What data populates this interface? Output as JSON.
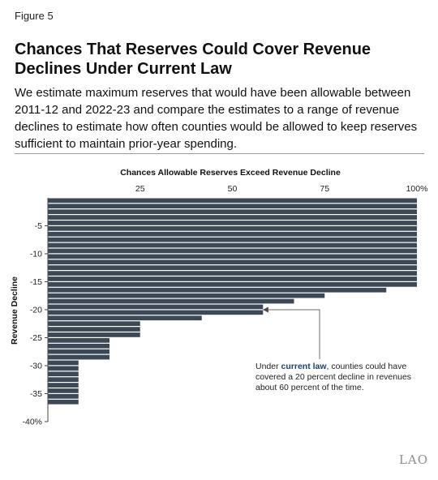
{
  "figure_label": "Figure 5",
  "title": "Chances That Reserves Could Cover Revenue Declines Under Current Law",
  "subtitle": "We estimate maximum reserves that would have been allowable between 2011-12 and 2022-23 and compare the estimates to a range of revenue declines to estimate how often counties would be allowed to keep reserves sufficient to maintain prior-year spending.",
  "logo_text": "LAO",
  "chart_data": {
    "type": "bar",
    "orientation": "horizontal",
    "title": "Chances Allowable Reserves Exceed Revenue Decline",
    "xlabel": "",
    "ylabel": "Revenue Decline",
    "xlim": [
      0,
      100
    ],
    "xticks": [
      25,
      50,
      75,
      100
    ],
    "xtick_labels": [
      "25",
      "50",
      "75",
      "100%"
    ],
    "ylim": [
      0,
      -40
    ],
    "yticks": [
      -5,
      -10,
      -15,
      -20,
      -25,
      -30,
      -35,
      -40
    ],
    "ytick_labels": [
      "-5",
      "-10",
      "-15",
      "-20",
      "-25",
      "-30",
      "-35",
      "-40%"
    ],
    "bar_color": "#3d4856",
    "annotation": {
      "text_before": "Under ",
      "text_bold": "current law",
      "text_after": ", counties could have covered a 20 percent decline in revenues about 60 percent of the time.",
      "points_to": {
        "x": 58,
        "y": -20
      },
      "bold_color": "#1f3f73"
    },
    "categories": [
      -1,
      -2,
      -3,
      -4,
      -5,
      -6,
      -7,
      -8,
      -9,
      -10,
      -11,
      -12,
      -13,
      -14,
      -15,
      -16,
      -17,
      -18,
      -19,
      -20,
      -21,
      -22,
      -23,
      -24,
      -25,
      -26,
      -27,
      -28,
      -29,
      -30,
      -31,
      -32,
      -33,
      -34,
      -35,
      -36,
      -37
    ],
    "values": [
      100,
      100,
      100,
      100,
      100,
      100,
      100,
      100,
      100,
      100,
      100,
      100,
      100,
      100,
      100,
      100,
      91.7,
      75,
      66.7,
      58.3,
      58.3,
      41.7,
      25,
      25,
      25,
      16.7,
      16.7,
      16.7,
      16.7,
      8.3,
      8.3,
      8.3,
      8.3,
      8.3,
      8.3,
      8.3,
      8.3
    ]
  }
}
